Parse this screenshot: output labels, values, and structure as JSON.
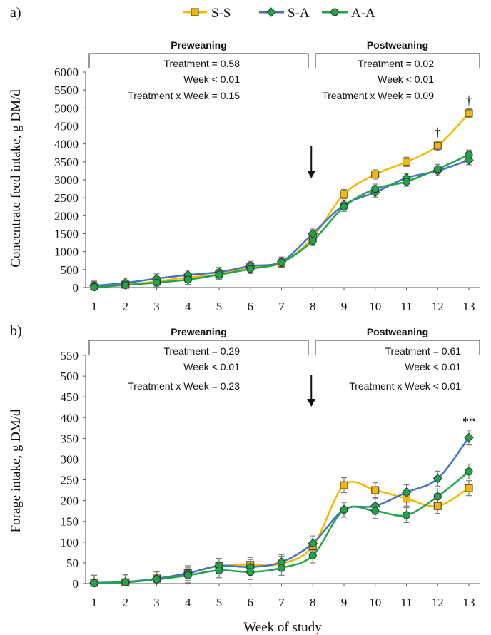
{
  "legend": {
    "items": [
      {
        "label": "S-S",
        "color": "#f5b800",
        "marker": "square"
      },
      {
        "label": "S-A",
        "color": "#4472c4",
        "marker": "diamond"
      },
      {
        "label": "A-A",
        "color": "#1fa64a",
        "marker": "circle"
      }
    ]
  },
  "xlabel": "Week of study",
  "chart_data": [
    {
      "type": "line",
      "panel_label": "a)",
      "ylabel": "Concentrate feed intake, g DM/d",
      "x": [
        1,
        2,
        3,
        4,
        5,
        6,
        7,
        8,
        9,
        10,
        11,
        12,
        13
      ],
      "xlim": [
        1,
        13
      ],
      "ylim": [
        0,
        6000
      ],
      "yticks": [
        0,
        500,
        1000,
        1500,
        2000,
        2500,
        3000,
        3500,
        4000,
        4500,
        5000,
        5500,
        6000
      ],
      "error_bar": 130,
      "weaning_arrow_week": 8,
      "sections": [
        {
          "title": "Preweaning",
          "from": 1,
          "to": 8,
          "stats": [
            "Treatment = 0.58",
            "Week < 0.01",
            "Treatment x Week = 0.15"
          ]
        },
        {
          "title": "Postweaning",
          "from": 8,
          "to": 13,
          "stats": [
            "Treatment = 0.02",
            "Week < 0.01",
            "Treatment x Week = 0.09"
          ]
        }
      ],
      "annotations": [
        {
          "text": "†",
          "x": 12,
          "y": 4200
        },
        {
          "text": "†",
          "x": 13,
          "y": 5100
        }
      ],
      "series": [
        {
          "name": "S-S",
          "values": [
            30,
            80,
            170,
            280,
            370,
            580,
            680,
            1400,
            2600,
            3150,
            3500,
            3950,
            4850
          ]
        },
        {
          "name": "S-A",
          "values": [
            50,
            130,
            250,
            350,
            430,
            600,
            720,
            1500,
            2300,
            2650,
            3050,
            3250,
            3550
          ]
        },
        {
          "name": "A-A",
          "values": [
            10,
            70,
            140,
            220,
            360,
            520,
            700,
            1300,
            2250,
            2750,
            2950,
            3300,
            3700
          ]
        }
      ]
    },
    {
      "type": "line",
      "panel_label": "b)",
      "ylabel": "Forage intake, g DM/d",
      "x": [
        1,
        2,
        3,
        4,
        5,
        6,
        7,
        8,
        9,
        10,
        11,
        12,
        13
      ],
      "xlim": [
        1,
        13
      ],
      "ylim": [
        0,
        550
      ],
      "yticks": [
        0,
        50,
        100,
        150,
        200,
        250,
        300,
        350,
        400,
        450,
        500,
        550
      ],
      "error_bar": 18,
      "weaning_arrow_week": 8,
      "sections": [
        {
          "title": "Preweaning",
          "from": 1,
          "to": 8,
          "stats": [
            "Treatment = 0.29",
            "Week < 0.01",
            "Treatment x Week = 0.23"
          ]
        },
        {
          "title": "Postweaning",
          "from": 8,
          "to": 13,
          "stats": [
            "Treatment = 0.61",
            "Week < 0.01",
            "Treatment x Week < 0.01"
          ]
        }
      ],
      "annotations": [
        {
          "text": "**",
          "x": 13,
          "y": 380
        }
      ],
      "series": [
        {
          "name": "S-S",
          "values": [
            2,
            3,
            12,
            25,
            42,
            45,
            48,
            90,
            237,
            225,
            205,
            187,
            230
          ]
        },
        {
          "name": "S-A",
          "values": [
            2,
            4,
            12,
            25,
            43,
            40,
            52,
            97,
            178,
            187,
            220,
            253,
            352
          ]
        },
        {
          "name": "A-A",
          "values": [
            1,
            3,
            10,
            20,
            32,
            28,
            38,
            68,
            178,
            175,
            165,
            210,
            270
          ]
        }
      ]
    }
  ]
}
